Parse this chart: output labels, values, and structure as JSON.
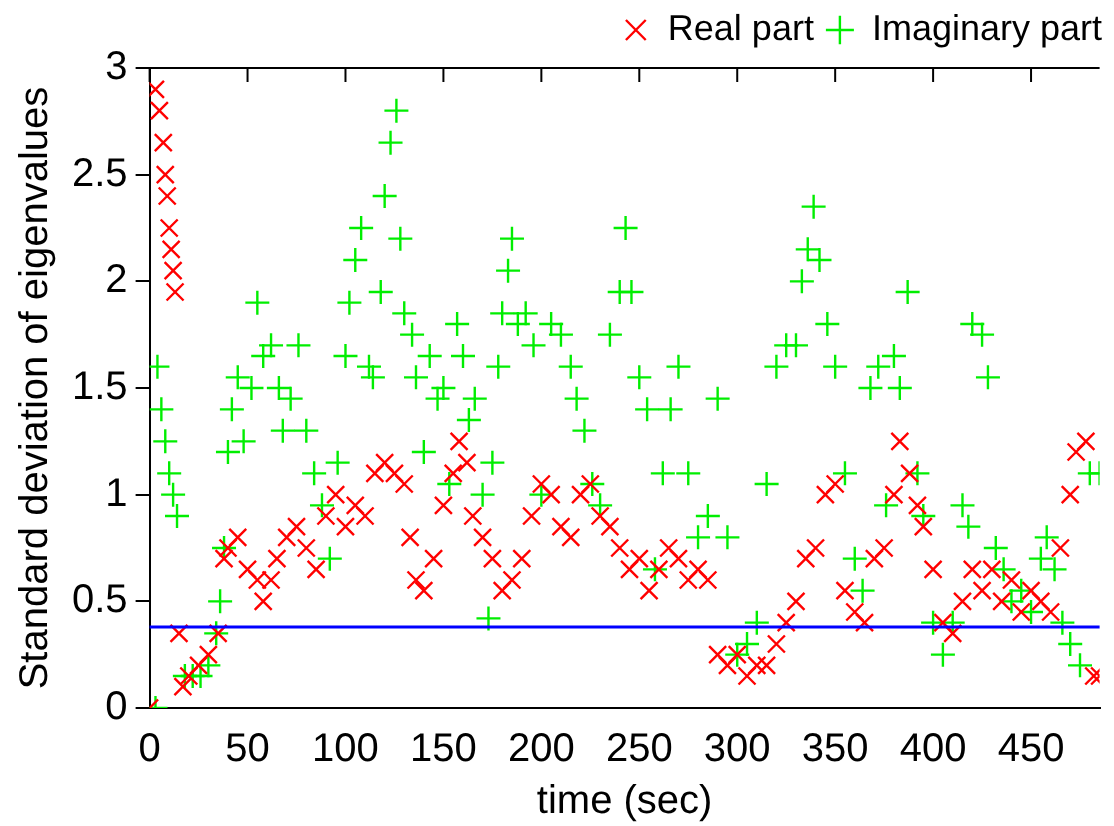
{
  "chart_data": {
    "type": "scatter",
    "xlabel": "time (sec)",
    "ylabel": "Standard deviation of eigenvalues",
    "xlim": [
      0,
      485
    ],
    "ylim": [
      0,
      3
    ],
    "xticks": [
      0,
      50,
      100,
      150,
      200,
      250,
      300,
      350,
      400,
      450
    ],
    "yticks": [
      0,
      0.5,
      1,
      1.5,
      2,
      2.5,
      3
    ],
    "grid": false,
    "legend": "top right",
    "ref_lines": [
      {
        "axis": "y",
        "value": 0.38,
        "color": "#0000ff"
      }
    ],
    "series": [
      {
        "name": "Real part",
        "color": "#ff0000",
        "marker": "x",
        "x": [
          0,
          3,
          5,
          7,
          8,
          9,
          10,
          11,
          12,
          13,
          15,
          17,
          20,
          25,
          30,
          35,
          38,
          40,
          45,
          50,
          55,
          58,
          62,
          65,
          70,
          75,
          80,
          85,
          90,
          95,
          100,
          105,
          110,
          115,
          120,
          125,
          130,
          133,
          136,
          140,
          145,
          150,
          155,
          158,
          162,
          165,
          170,
          175,
          180,
          185,
          190,
          195,
          200,
          205,
          210,
          215,
          220,
          225,
          230,
          235,
          240,
          245,
          250,
          255,
          260,
          265,
          270,
          275,
          280,
          285,
          290,
          295,
          300,
          305,
          310,
          315,
          320,
          325,
          330,
          335,
          340,
          345,
          350,
          355,
          360,
          365,
          370,
          375,
          380,
          383,
          388,
          392,
          395,
          400,
          405,
          410,
          415,
          420,
          425,
          430,
          435,
          440,
          445,
          450,
          455,
          460,
          465,
          470,
          473,
          478,
          482,
          485
        ],
        "values": [
          0,
          2.9,
          2.8,
          2.65,
          2.5,
          2.4,
          2.25,
          2.15,
          2.05,
          1.95,
          0.35,
          0.1,
          0.15,
          0.2,
          0.25,
          0.35,
          0.7,
          0.75,
          0.8,
          0.65,
          0.6,
          0.5,
          0.6,
          0.7,
          0.8,
          0.85,
          0.75,
          0.65,
          0.9,
          1,
          0.85,
          0.95,
          0.9,
          1.1,
          1.15,
          1.1,
          1.05,
          0.8,
          0.6,
          0.55,
          0.7,
          0.95,
          1.1,
          1.25,
          1.15,
          0.9,
          0.8,
          0.7,
          0.55,
          0.6,
          0.7,
          0.9,
          1.05,
          1,
          0.85,
          0.8,
          1,
          1.05,
          0.9,
          0.85,
          0.75,
          0.65,
          0.7,
          0.55,
          0.65,
          0.75,
          0.7,
          0.6,
          0.65,
          0.6,
          0.25,
          0.2,
          0.25,
          0.15,
          0.2,
          0.2,
          0.3,
          0.4,
          0.5,
          0.7,
          0.75,
          1,
          1.05,
          0.55,
          0.45,
          0.4,
          0.7,
          0.75,
          1,
          1.25,
          1.1,
          0.95,
          0.85,
          0.65,
          0.4,
          0.35,
          0.5,
          0.65,
          0.55,
          0.65,
          0.5,
          0.6,
          0.45,
          0.55,
          0.5,
          0.45,
          0.75,
          1,
          1.2,
          1.25,
          0.15,
          0.15
        ]
      },
      {
        "name": "Imaginary part",
        "color": "#00ee00",
        "marker": "cross",
        "x": [
          3,
          4,
          6,
          8,
          10,
          12,
          14,
          18,
          22,
          26,
          30,
          34,
          36,
          38,
          40,
          42,
          45,
          48,
          52,
          55,
          58,
          62,
          66,
          68,
          72,
          76,
          80,
          84,
          88,
          92,
          96,
          100,
          102,
          105,
          108,
          112,
          114,
          118,
          120,
          123,
          126,
          128,
          130,
          134,
          136,
          140,
          143,
          147,
          150,
          153,
          157,
          160,
          163,
          166,
          170,
          173,
          175,
          178,
          180,
          183,
          185,
          188,
          192,
          196,
          200,
          205,
          210,
          215,
          218,
          222,
          226,
          230,
          235,
          240,
          243,
          246,
          250,
          254,
          258,
          262,
          266,
          270,
          275,
          280,
          285,
          290,
          295,
          300,
          305,
          310,
          315,
          320,
          325,
          330,
          333,
          336,
          339,
          342,
          346,
          350,
          355,
          360,
          364,
          368,
          372,
          376,
          380,
          383,
          387,
          392,
          395,
          400,
          405,
          410,
          415,
          418,
          420,
          425,
          428,
          432,
          436,
          440,
          445,
          450,
          455,
          458,
          462,
          466,
          470,
          475,
          480,
          485
        ],
        "values": [
          0,
          1.6,
          1.4,
          1.25,
          1.1,
          1,
          0.9,
          0.15,
          0.15,
          0.15,
          0.2,
          0.35,
          0.5,
          0.75,
          1.2,
          1.4,
          1.55,
          1.25,
          1.5,
          1.9,
          1.65,
          1.7,
          1.5,
          1.3,
          1.45,
          1.7,
          1.3,
          1.1,
          0.95,
          0.7,
          1.15,
          1.65,
          1.9,
          2.1,
          2.25,
          1.6,
          1.55,
          1.95,
          2.4,
          2.65,
          2.8,
          2.2,
          1.85,
          1.75,
          1.55,
          1.2,
          1.65,
          1.45,
          1.5,
          1.05,
          1.8,
          1.65,
          1.35,
          1.45,
          1,
          0.42,
          1.15,
          1.6,
          1.85,
          2.05,
          2.2,
          1.8,
          1.85,
          1.7,
          1,
          1.8,
          1.75,
          1.6,
          1.45,
          1.3,
          1.05,
          0.95,
          1.75,
          1.95,
          2.25,
          1.95,
          1.55,
          1.4,
          0.65,
          1.1,
          1.4,
          1.6,
          1.1,
          0.8,
          0.9,
          1.45,
          0.8,
          0.25,
          0.3,
          0.4,
          1.05,
          1.6,
          1.7,
          1.7,
          2,
          2.15,
          2.35,
          2.1,
          1.8,
          1.6,
          1.1,
          0.7,
          0.55,
          1.5,
          1.6,
          0.95,
          1.65,
          1.5,
          1.95,
          1.1,
          0.9,
          0.4,
          0.25,
          0.4,
          0.95,
          0.85,
          1.8,
          1.75,
          1.55,
          0.75,
          0.65,
          0.5,
          0.55,
          0.45,
          0.7,
          0.8,
          0.65,
          0.4,
          0.3,
          0.2,
          1.1,
          1.1
        ]
      }
    ]
  }
}
